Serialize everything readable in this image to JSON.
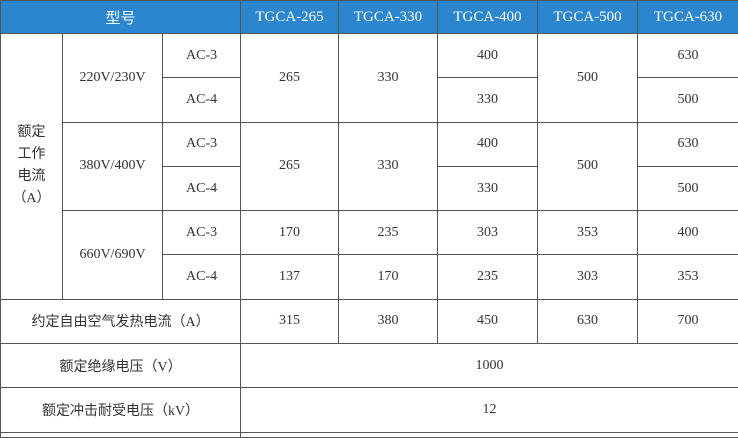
{
  "header": {
    "model_label": "型号",
    "models": [
      "TGCA-265",
      "TGCA-330",
      "TGCA-400",
      "TGCA-500",
      "TGCA-630"
    ]
  },
  "rated_current": {
    "label_lines": [
      "额定",
      "工作",
      "电流",
      "（A）"
    ],
    "groups": [
      {
        "voltage": "220V/230V",
        "rows": [
          {
            "category": "AC-3",
            "values": [
              "265",
              "330",
              "400",
              "500",
              "630"
            ]
          },
          {
            "category": "AC-4",
            "values": [
              "265",
              "330",
              "330",
              "500",
              "500"
            ]
          }
        ]
      },
      {
        "voltage": "380V/400V",
        "rows": [
          {
            "category": "AC-3",
            "values": [
              "265",
              "330",
              "400",
              "500",
              "630"
            ]
          },
          {
            "category": "AC-4",
            "values": [
              "265",
              "330",
              "330",
              "500",
              "500"
            ]
          }
        ]
      },
      {
        "voltage": "660V/690V",
        "rows": [
          {
            "category": "AC-3",
            "values": [
              "170",
              "235",
              "303",
              "353",
              "400"
            ]
          },
          {
            "category": "AC-4",
            "values": [
              "137",
              "170",
              "235",
              "303",
              "353"
            ]
          }
        ]
      }
    ]
  },
  "thermal_current": {
    "label": "约定自由空气发热电流（A）",
    "values": [
      "315",
      "380",
      "450",
      "630",
      "700"
    ]
  },
  "insulation_voltage": {
    "label": "额定绝缘电压（V）",
    "value": "1000"
  },
  "impulse_voltage": {
    "label": "额定冲击耐受电压（kV）",
    "value": "12"
  },
  "colors": {
    "header_bg": "#2b85cf",
    "header_text": "#ffffff",
    "text": "#333333"
  }
}
